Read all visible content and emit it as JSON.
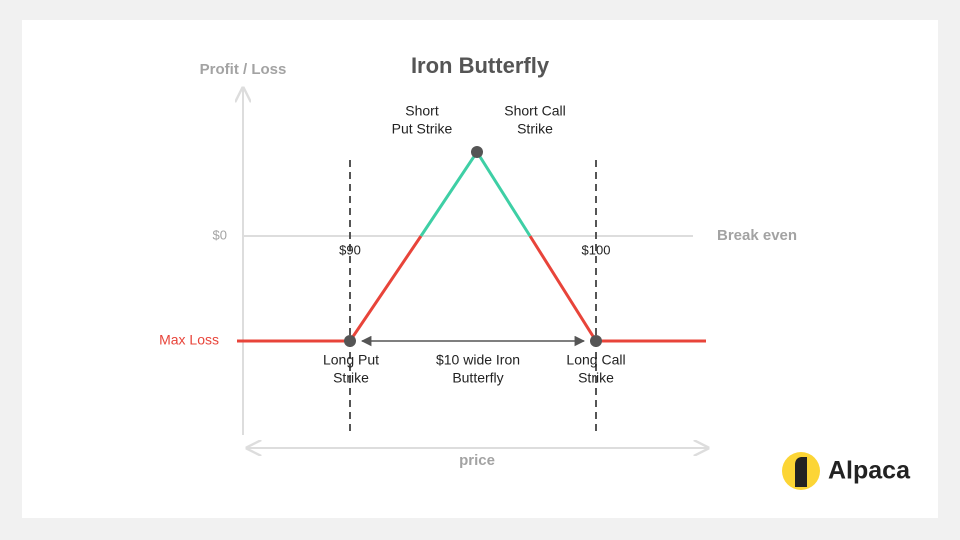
{
  "title": "Iron Butterfly",
  "axes": {
    "y_label": "Profit / Loss",
    "x_label": "price"
  },
  "levels": {
    "zero": "$0",
    "break_even": "Break even",
    "max_loss": "Max Loss"
  },
  "strikes": {
    "low": "$90",
    "high": "$100"
  },
  "labels": {
    "short_put": [
      "Short",
      "Put Strike"
    ],
    "short_call": [
      "Short Call",
      "Strike"
    ],
    "long_put": [
      "Long Put",
      "Strike"
    ],
    "long_call": [
      "Long Call",
      "Strike"
    ],
    "width": [
      "$10 wide Iron",
      "Butterfly"
    ]
  },
  "brand": "Alpaca"
}
